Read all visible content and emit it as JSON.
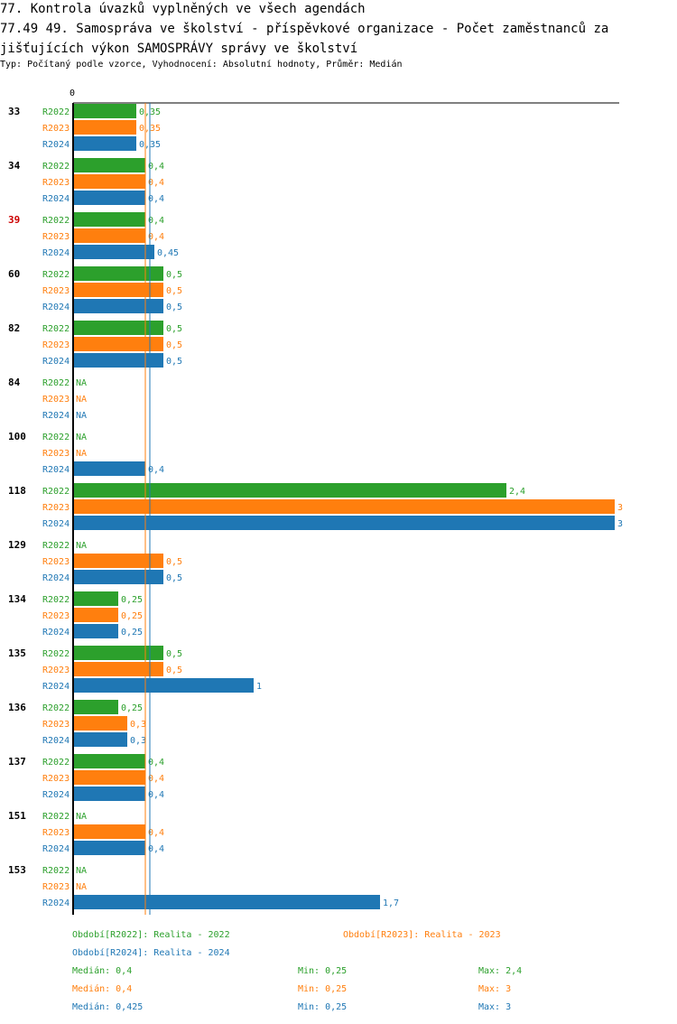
{
  "header": {
    "title_line1": "77. Kontrola úvazků vyplněných ve všech agendách",
    "title_line2": "77.49 49. Samospráva ve školství - příspěvkové organizace  - Počet zaměstnanců za",
    "title_line3": "jišťujících výkon SAMOSPRÁVY správy ve školství",
    "subtitle": "Typ: Počítaný podle vzorce, Vyhodnocení: Absolutní hodnoty, Průměr: Medián"
  },
  "colors": {
    "R2022": "#2ca02c",
    "R2023": "#ff7f0e",
    "R2024": "#1f77b4",
    "highlight": "#cc0000"
  },
  "chart_data": {
    "type": "bar",
    "orientation": "horizontal",
    "axis_zero_label": "0",
    "xlim": [
      0,
      3
    ],
    "highlighted_category": "39",
    "categories": [
      "33",
      "34",
      "39",
      "60",
      "82",
      "84",
      "100",
      "118",
      "129",
      "134",
      "135",
      "136",
      "137",
      "151",
      "153"
    ],
    "series": [
      {
        "name": "R2022",
        "values": [
          0.35,
          0.4,
          0.4,
          0.5,
          0.5,
          null,
          null,
          2.4,
          null,
          0.25,
          0.5,
          0.25,
          0.4,
          null,
          null
        ],
        "labels": [
          "0,35",
          "0,4",
          "0,4",
          "0,5",
          "0,5",
          "NA",
          "NA",
          "2,4",
          "NA",
          "0,25",
          "0,5",
          "0,25",
          "0,4",
          "NA",
          "NA"
        ]
      },
      {
        "name": "R2023",
        "values": [
          0.35,
          0.4,
          0.4,
          0.5,
          0.5,
          null,
          null,
          3,
          0.5,
          0.25,
          0.5,
          0.3,
          0.4,
          0.4,
          null
        ],
        "labels": [
          "0,35",
          "0,4",
          "0,4",
          "0,5",
          "0,5",
          "NA",
          "NA",
          "3",
          "0,5",
          "0,25",
          "0,5",
          "0,3",
          "0,4",
          "0,4",
          "NA"
        ]
      },
      {
        "name": "R2024",
        "values": [
          0.35,
          0.4,
          0.45,
          0.5,
          0.5,
          null,
          0.4,
          3,
          0.5,
          0.25,
          1,
          0.3,
          0.4,
          0.4,
          1.7
        ],
        "labels": [
          "0,35",
          "0,4",
          "0,45",
          "0,5",
          "0,5",
          "NA",
          "0,4",
          "3",
          "0,5",
          "0,25",
          "1",
          "0,3",
          "0,4",
          "0,4",
          "1,7"
        ]
      }
    ],
    "median_lines": [
      {
        "series": "R2022",
        "value": 0.4
      },
      {
        "series": "R2023",
        "value": 0.4
      },
      {
        "series": "R2024",
        "value": 0.425
      }
    ]
  },
  "legend": {
    "r2022": "Období[R2022]: Realita - 2022",
    "r2023": "Období[R2023]: Realita - 2023",
    "r2024": "Období[R2024]: Realita - 2024",
    "stats": [
      {
        "median": "Medián: 0,4",
        "min": "Min: 0,25",
        "max": "Max: 2,4"
      },
      {
        "median": "Medián: 0,4",
        "min": "Min: 0,25",
        "max": "Max: 3"
      },
      {
        "median": "Medián: 0,425",
        "min": "Min: 0,25",
        "max": "Max: 3"
      }
    ]
  }
}
